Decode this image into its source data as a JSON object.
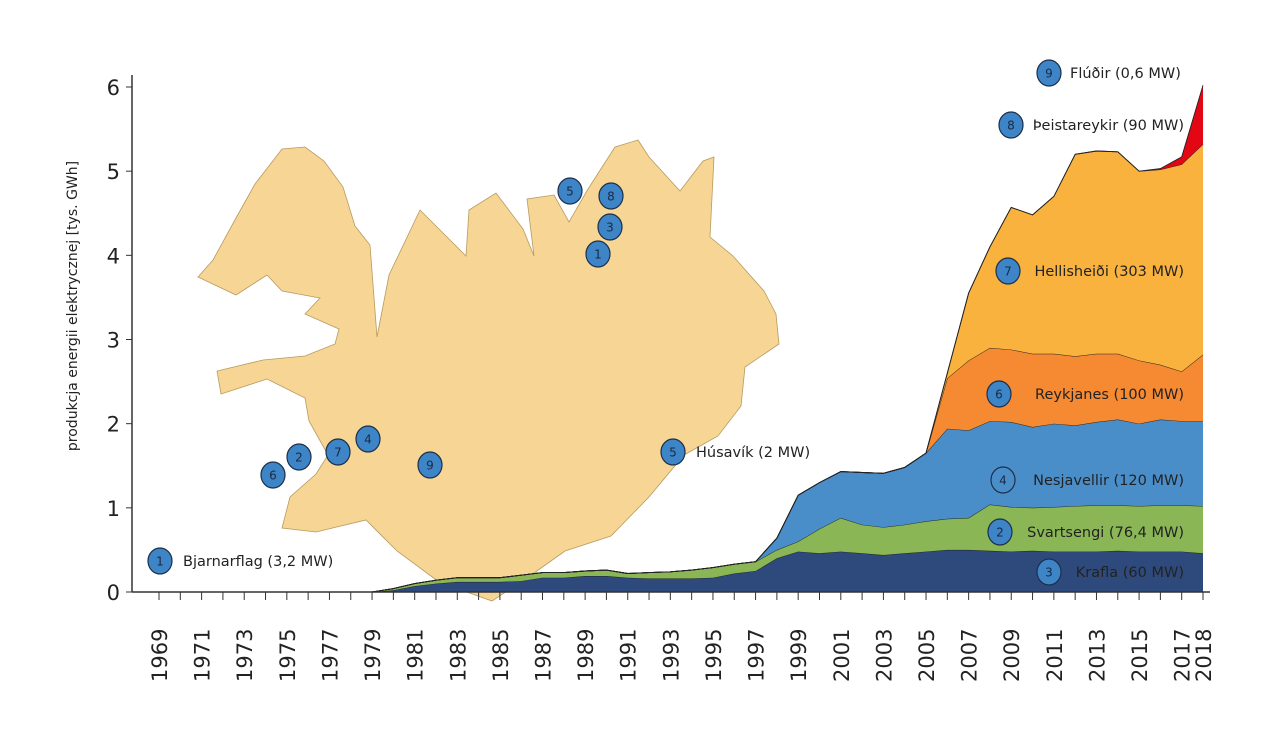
{
  "chart_data": {
    "type": "area",
    "stacked": true,
    "title": "",
    "xlabel": "",
    "ylabel": "produkcja energii elektrycznej [tys. GWh]",
    "ylim": [
      0,
      6
    ],
    "yticks": [
      "0",
      "1",
      "2",
      "3",
      "4",
      "5",
      "6"
    ],
    "xlim": [
      1969,
      2018
    ],
    "xtick_labels": [
      "1969",
      "1971",
      "1973",
      "1975",
      "1977",
      "1979",
      "1981",
      "1983",
      "1985",
      "1987",
      "1989",
      "1991",
      "1993",
      "1995",
      "1997",
      "1999",
      "2001",
      "2003",
      "2005",
      "2007",
      "2009",
      "2011",
      "2013",
      "2015",
      "2017",
      "2018"
    ],
    "grid": false,
    "x": [
      1969,
      1970,
      1971,
      1972,
      1973,
      1974,
      1975,
      1976,
      1977,
      1978,
      1979,
      1980,
      1981,
      1982,
      1983,
      1984,
      1985,
      1986,
      1987,
      1988,
      1989,
      1990,
      1991,
      1992,
      1993,
      1994,
      1995,
      1996,
      1997,
      1998,
      1999,
      2000,
      2001,
      2002,
      2003,
      2004,
      2005,
      2006,
      2007,
      2008,
      2009,
      2010,
      2011,
      2012,
      2013,
      2014,
      2015,
      2016,
      2017,
      2018
    ],
    "series": [
      {
        "name": "Krafla (60 MW)",
        "marker": "3",
        "color": "#2e4a7d",
        "values": [
          0,
          0,
          0,
          0,
          0,
          0,
          0,
          0,
          0,
          0,
          0,
          0.02,
          0.07,
          0.1,
          0.12,
          0.12,
          0.12,
          0.13,
          0.17,
          0.17,
          0.19,
          0.19,
          0.17,
          0.16,
          0.16,
          0.16,
          0.17,
          0.22,
          0.25,
          0.4,
          0.48,
          0.46,
          0.48,
          0.46,
          0.44,
          0.46,
          0.48,
          0.5,
          0.5,
          0.49,
          0.48,
          0.49,
          0.48,
          0.48,
          0.48,
          0.49,
          0.48,
          0.48,
          0.48,
          0.46
        ]
      },
      {
        "name": "Svartsengi (76,4 MW)",
        "marker": "2",
        "color": "#8ab655",
        "values": [
          0,
          0,
          0,
          0,
          0,
          0,
          0,
          0,
          0,
          0,
          0,
          0.02,
          0.03,
          0.04,
          0.05,
          0.05,
          0.05,
          0.07,
          0.06,
          0.06,
          0.06,
          0.07,
          0.05,
          0.07,
          0.08,
          0.1,
          0.12,
          0.11,
          0.11,
          0.1,
          0.12,
          0.29,
          0.4,
          0.34,
          0.33,
          0.34,
          0.36,
          0.37,
          0.38,
          0.55,
          0.53,
          0.51,
          0.53,
          0.54,
          0.55,
          0.54,
          0.54,
          0.55,
          0.55,
          0.56
        ]
      },
      {
        "name": "Nesjavellir (120 MW)",
        "marker": "4",
        "color": "#4a8ec9",
        "values": [
          0,
          0,
          0,
          0,
          0,
          0,
          0,
          0,
          0,
          0,
          0,
          0,
          0,
          0,
          0,
          0,
          0,
          0,
          0,
          0,
          0,
          0,
          0,
          0,
          0,
          0,
          0,
          0,
          0,
          0.14,
          0.55,
          0.55,
          0.55,
          0.62,
          0.64,
          0.68,
          0.81,
          1.07,
          1.04,
          0.99,
          1.01,
          0.96,
          0.99,
          0.96,
          0.99,
          1.02,
          0.98,
          1.02,
          1.0,
          1.01
        ]
      },
      {
        "name": "Reykjanes (100 MW)",
        "marker": "6",
        "color": "#f58a32",
        "values": [
          0,
          0,
          0,
          0,
          0,
          0,
          0,
          0,
          0,
          0,
          0,
          0,
          0,
          0,
          0,
          0,
          0,
          0,
          0,
          0,
          0,
          0,
          0,
          0,
          0,
          0,
          0,
          0,
          0,
          0,
          0,
          0,
          0,
          0,
          0,
          0,
          0,
          0.6,
          0.83,
          0.87,
          0.86,
          0.87,
          0.83,
          0.82,
          0.81,
          0.78,
          0.75,
          0.65,
          0.59,
          0.79
        ]
      },
      {
        "name": "Hellisheiði (303 MW)",
        "marker": "7",
        "color": "#f9b23d",
        "values": [
          0,
          0,
          0,
          0,
          0,
          0,
          0,
          0,
          0,
          0,
          0,
          0,
          0,
          0,
          0,
          0,
          0,
          0,
          0,
          0,
          0,
          0,
          0,
          0,
          0,
          0,
          0,
          0,
          0,
          0,
          0,
          0,
          0,
          0,
          0,
          0,
          0,
          0.06,
          0.8,
          1.2,
          1.69,
          1.65,
          1.87,
          2.4,
          2.41,
          2.4,
          2.25,
          2.32,
          2.46,
          2.5
        ]
      },
      {
        "name": "Þeistareykir (90 MW)",
        "marker": "8",
        "color": "#e30613",
        "values": [
          0,
          0,
          0,
          0,
          0,
          0,
          0,
          0,
          0,
          0,
          0,
          0,
          0,
          0,
          0,
          0,
          0,
          0,
          0,
          0,
          0,
          0,
          0,
          0,
          0,
          0,
          0,
          0,
          0,
          0,
          0,
          0,
          0,
          0,
          0,
          0,
          0,
          0,
          0,
          0,
          0,
          0,
          0,
          0,
          0,
          0,
          0,
          0.01,
          0.09,
          0.7
        ]
      }
    ],
    "annotations": [
      {
        "marker": "1",
        "text": "Bjarnarflag (3,2 MW)"
      },
      {
        "marker": "5",
        "text": "Húsavík (2 MW)"
      },
      {
        "marker": "9",
        "text": "Flúðir (0,6 MW)"
      }
    ],
    "map": {
      "region": "Iceland",
      "fill": "#f6d595",
      "marker_color": "#3d85c6",
      "markers": [
        "5",
        "8",
        "3",
        "1",
        "4",
        "7",
        "2",
        "6",
        "9"
      ]
    }
  }
}
